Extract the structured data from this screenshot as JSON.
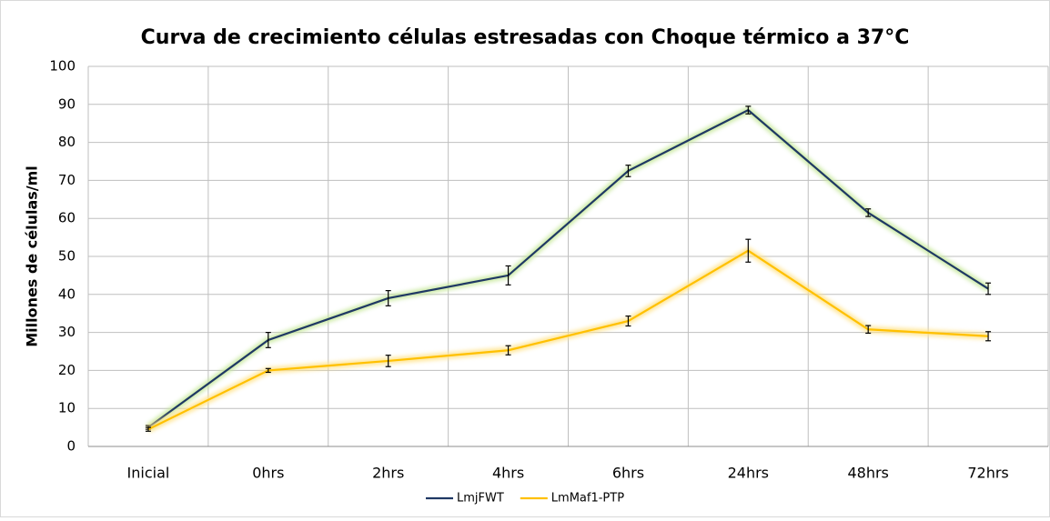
{
  "chart_data": {
    "type": "line",
    "title": "Curva de crecimiento células estresadas con Choque térmico a 37°C",
    "y_label": "Millones de células/ml",
    "categories": [
      "Inicial",
      "0hrs",
      "2hrs",
      "4hrs",
      "6hrs",
      "24hrs",
      "48hrs",
      "72hrs"
    ],
    "series": [
      {
        "name": "LmjFWT",
        "color": "#1f3864",
        "glow": "#c6e89a",
        "values": [
          5,
          28,
          39,
          45,
          72.5,
          88.5,
          61.5,
          41.5
        ],
        "errors": [
          0.5,
          2,
          2,
          2.5,
          1.5,
          1,
          1,
          1.5
        ]
      },
      {
        "name": "LmMaf1-PTP",
        "color": "#ffc000",
        "glow": "#ffe38a",
        "values": [
          4.5,
          20,
          22.5,
          25.3,
          33,
          51.5,
          30.8,
          29
        ],
        "errors": [
          0.5,
          0.5,
          1.5,
          1.2,
          1.3,
          3,
          1,
          1.2
        ]
      }
    ],
    "ylim": [
      0,
      100
    ],
    "yticks": [
      0,
      10,
      20,
      30,
      40,
      50,
      60,
      70,
      80,
      90,
      100
    ],
    "grid": true,
    "legend": "bottom"
  }
}
